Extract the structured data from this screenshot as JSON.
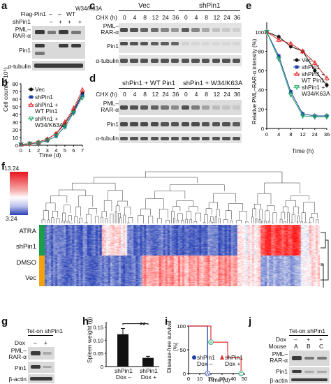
{
  "panels": {
    "a": "a",
    "b": "b",
    "c": "c",
    "d": "d",
    "e": "e",
    "f": "f",
    "g": "g",
    "h": "h",
    "i": "i",
    "j": "j"
  },
  "a": {
    "row1": [
      "Flag-Pin1",
      "–",
      "–",
      "WT",
      "W34/\nK63A"
    ],
    "flag_label": "Flag-Pin1",
    "flag_vals": [
      "–",
      "–",
      "WT",
      "W34/K63A"
    ],
    "shpin1_label": "shPin1",
    "shpin1_vals": [
      "–",
      "+",
      "+",
      "+"
    ],
    "blots": [
      "PML–\nRAR-α",
      "Pin1",
      "α-tubulin"
    ]
  },
  "b": {
    "ylabel": "Cell count (×10⁵)",
    "xlabel": "Time (d)",
    "yticks": [
      "0",
      "10",
      "20",
      "30",
      "40",
      "50",
      "60",
      "70",
      "80"
    ],
    "xticks": [
      "0",
      "1",
      "2",
      "3",
      "4",
      "5",
      "6",
      "7"
    ],
    "legend": [
      "Vec",
      "shPin1",
      "shPin1 +\nWT Pin1",
      "shPin1 +\nW34/K63A"
    ]
  },
  "c": {
    "group1": "Vec",
    "group2": "shPin1",
    "chx": "CHX (h)",
    "times": [
      "0",
      "4",
      "8",
      "12",
      "24",
      "36",
      "0",
      "4",
      "8",
      "12",
      "24",
      "36"
    ],
    "blots": [
      "PML–\nRAR-α",
      "Pin1",
      "α-tubulin"
    ]
  },
  "d": {
    "group1": "shPin1 + WT Pin1",
    "group2": "shPin1 + W34/K63A",
    "chx": "CHX (h)",
    "times": [
      "0",
      "4",
      "8",
      "12",
      "24",
      "36",
      "0",
      "4",
      "8",
      "12",
      "24",
      "36"
    ],
    "blots": [
      "PML–\nRAR-α",
      "Pin1",
      "α-tubulin"
    ]
  },
  "e": {
    "ylabel": "Relative PML–RAR-α intensity (%)",
    "xlabel": "Time (h)",
    "yticks": [
      "0",
      "20",
      "40",
      "60",
      "80",
      "100"
    ],
    "xticks": [
      "0",
      "4",
      "8",
      "12",
      "24",
      "36"
    ],
    "legend": [
      "Vec",
      "shPin1",
      "shPin1 +\nWT Pin1",
      "shPin1 +\nW34/K63A"
    ]
  },
  "f": {
    "scale_max": "13.24",
    "scale_min": "3.24",
    "rows": [
      "ATRA",
      "shPin1",
      "DMSO",
      "Vec"
    ]
  },
  "g": {
    "title": "Tet-on shPin1",
    "dox": "Dox",
    "dox_vals": [
      "–",
      "+"
    ],
    "blots": [
      "PML–\nRAR-α",
      "Pin1",
      "β-actin"
    ]
  },
  "h": {
    "ylabel": "Spleen weight (g)",
    "yticks": [
      "0",
      "0.05",
      "0.10",
      "0.15"
    ],
    "categories": [
      "shPin1\nDox –",
      "shPin1\nDox +"
    ],
    "sig": "**"
  },
  "i": {
    "ylabel": "Disease-free survival\n(%)",
    "xlabel": "Time (d)",
    "yticks": [
      "0",
      "50",
      "100"
    ],
    "xticks": [
      "0",
      "10",
      "20",
      "30",
      "40",
      "50"
    ],
    "legend1": "shPin1\nDox –",
    "legend2": "shPin1\nDox +",
    "markers": [
      "B",
      "A",
      "C"
    ]
  },
  "j": {
    "title": "Tet-on shPin1",
    "dox": "Dox",
    "dox_vals": [
      "–",
      "+",
      "+"
    ],
    "mouse": "Mouse",
    "mouse_vals": [
      "A",
      "B",
      "C"
    ],
    "blots": [
      "PML–\nRAR-α",
      "Pin1",
      "β-actin"
    ]
  },
  "colors": {
    "vec": "#111111",
    "shpin1": "#1f3fa6",
    "wt": "#e0312f",
    "w34": "#22a36a",
    "heat_hi": "#e8141c",
    "heat_lo": "#2b3fb3",
    "atra_bar": "#1a9e4a",
    "dmso_bar": "#f2a20f"
  },
  "chart_data": [
    {
      "type": "line",
      "title": "",
      "xlabel": "Time (d)",
      "ylabel": "Cell count (×10⁵)",
      "x": [
        0,
        1,
        2,
        3,
        4,
        5,
        6,
        7
      ],
      "ylim": [
        0,
        80
      ],
      "series": [
        {
          "name": "Vec",
          "values": [
            1,
            2,
            4,
            8,
            15,
            28,
            45,
            68
          ]
        },
        {
          "name": "shPin1",
          "values": [
            1,
            2,
            3,
            6,
            12,
            24,
            43,
            65
          ]
        },
        {
          "name": "shPin1 + WT Pin1",
          "values": [
            1,
            2,
            4,
            8,
            15,
            30,
            48,
            72
          ]
        },
        {
          "name": "shPin1 + W34/K63A",
          "values": [
            1,
            2,
            3,
            6,
            12,
            24,
            42,
            62
          ]
        }
      ]
    },
    {
      "type": "line",
      "title": "",
      "xlabel": "Time (h)",
      "ylabel": "Relative PML–RAR-α intensity (%)",
      "x": [
        0,
        4,
        8,
        12,
        24,
        36
      ],
      "ylim": [
        0,
        110
      ],
      "series": [
        {
          "name": "Vec",
          "values": [
            100,
            95,
            85,
            80,
            60,
            45
          ]
        },
        {
          "name": "shPin1",
          "values": [
            100,
            75,
            38,
            15,
            13,
            13
          ]
        },
        {
          "name": "shPin1 + WT Pin1",
          "values": [
            100,
            92,
            88,
            80,
            68,
            52
          ]
        },
        {
          "name": "shPin1 + W34/K63A",
          "values": [
            100,
            72,
            35,
            13,
            12,
            12
          ]
        }
      ]
    },
    {
      "type": "bar",
      "title": "",
      "ylabel": "Spleen weight (g)",
      "categories": [
        "shPin1 Dox –",
        "shPin1 Dox +"
      ],
      "values": [
        0.123,
        0.033
      ],
      "errors": [
        0.022,
        0.006
      ],
      "ylim": [
        0,
        0.17
      ]
    },
    {
      "type": "line",
      "title": "",
      "xlabel": "Time (d)",
      "ylabel": "Disease-free survival (%)",
      "x": [
        0,
        10,
        20,
        30,
        40,
        50
      ],
      "ylim": [
        0,
        100
      ],
      "series": [
        {
          "name": "shPin1 Dox –",
          "x": [
            0,
            17,
            17,
            20
          ],
          "values": [
            100,
            100,
            0,
            0
          ]
        },
        {
          "name": "shPin1 Dox +",
          "x": [
            0,
            20,
            20,
            35,
            35,
            47,
            47
          ],
          "values": [
            100,
            100,
            66,
            66,
            33,
            33,
            0
          ]
        }
      ]
    }
  ]
}
